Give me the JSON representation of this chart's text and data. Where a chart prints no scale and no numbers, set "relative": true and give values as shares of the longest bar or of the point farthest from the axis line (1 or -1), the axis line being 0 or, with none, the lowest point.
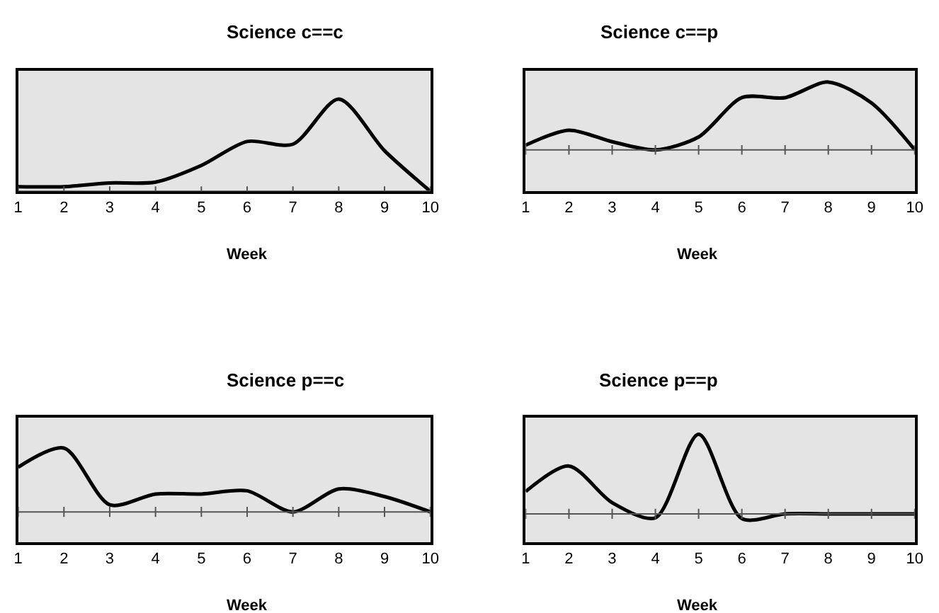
{
  "chart_data": [
    {
      "type": "line",
      "relative": true,
      "title": "Science c==c",
      "xlabel": "Week",
      "x": [
        1,
        2,
        3,
        4,
        5,
        6,
        7,
        8,
        9,
        10
      ],
      "xlim": [
        1,
        10
      ],
      "xticks": [
        1,
        2,
        3,
        4,
        5,
        6,
        7,
        8,
        9,
        10
      ],
      "series": [
        {
          "color": "#000000",
          "values": [
            0.05,
            0.05,
            0.09,
            0.1,
            0.28,
            0.54,
            0.51,
            1,
            0.44,
            0
          ]
        }
      ]
    },
    {
      "type": "line",
      "relative": true,
      "title": "Science c==p",
      "xlabel": "Week",
      "x": [
        1,
        2,
        3,
        4,
        5,
        6,
        7,
        8,
        9,
        10
      ],
      "xlim": [
        1,
        10
      ],
      "xticks": [
        1,
        2,
        3,
        4,
        5,
        6,
        7,
        8,
        9,
        10
      ],
      "series": [
        {
          "color": "#000000",
          "values": [
            0.07,
            0.29,
            0.12,
            0,
            0.19,
            0.77,
            0.77,
            1,
            0.69,
            0
          ]
        }
      ]
    },
    {
      "type": "line",
      "relative": true,
      "title": "Science p==c",
      "xlabel": "Week",
      "x": [
        1,
        2,
        3,
        4,
        5,
        6,
        7,
        8,
        9,
        10
      ],
      "xlim": [
        1,
        10
      ],
      "xticks": [
        1,
        2,
        3,
        4,
        5,
        6,
        7,
        8,
        9,
        10
      ],
      "series": [
        {
          "color": "#000000",
          "values": [
            0.7,
            1,
            0.11,
            0.28,
            0.28,
            0.33,
            0,
            0.36,
            0.24,
            0
          ]
        }
      ]
    },
    {
      "type": "line",
      "relative": true,
      "title": "Science p==p",
      "xlabel": "Week",
      "x": [
        1,
        2,
        3,
        4,
        5,
        6,
        7,
        8,
        9,
        10
      ],
      "xlim": [
        1,
        10
      ],
      "xticks": [
        1,
        2,
        3,
        4,
        5,
        6,
        7,
        8,
        9,
        10
      ],
      "series": [
        {
          "color": "#000000",
          "values": [
            0.28,
            0.6,
            0.14,
            -0.05,
            1,
            -0.06,
            0,
            0,
            0,
            0
          ]
        }
      ]
    }
  ]
}
